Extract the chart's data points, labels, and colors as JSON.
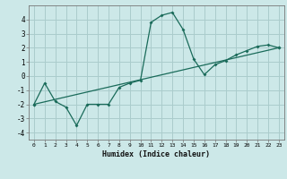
{
  "xlabel": "Humidex (Indice chaleur)",
  "ylabel": "",
  "background_color": "#cce8e8",
  "grid_color": "#aacccc",
  "line_color": "#1a6b5a",
  "xlim": [
    -0.5,
    23.5
  ],
  "ylim": [
    -4.5,
    5.0
  ],
  "xticks": [
    0,
    1,
    2,
    3,
    4,
    5,
    6,
    7,
    8,
    9,
    10,
    11,
    12,
    13,
    14,
    15,
    16,
    17,
    18,
    19,
    20,
    21,
    22,
    23
  ],
  "yticks": [
    -4,
    -3,
    -2,
    -1,
    0,
    1,
    2,
    3,
    4
  ],
  "line1_x": [
    0,
    1,
    2,
    3,
    4,
    5,
    6,
    7,
    8,
    9,
    10,
    11,
    12,
    13,
    14,
    15,
    16,
    17,
    18,
    19,
    20,
    21,
    22,
    23
  ],
  "line1_y": [
    -2.0,
    -0.5,
    -1.8,
    -2.2,
    -3.5,
    -2.0,
    -2.0,
    -2.0,
    -0.8,
    -0.5,
    -0.3,
    3.8,
    4.3,
    4.5,
    3.3,
    1.2,
    0.1,
    0.8,
    1.1,
    1.5,
    1.8,
    2.1,
    2.2,
    2.0
  ],
  "line2_x": [
    0,
    23
  ],
  "line2_y": [
    -2.0,
    2.0
  ]
}
